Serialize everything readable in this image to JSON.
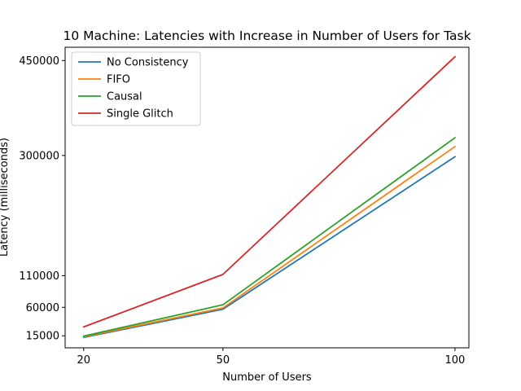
{
  "chart_data": {
    "type": "line",
    "title": "10 Machine: Latencies with Increase in Number of Users for Task",
    "xlabel": "Number of Users",
    "ylabel": "Latency (milliseconds)",
    "x": [
      20,
      50,
      100
    ],
    "x_ticks": [
      "20",
      "50",
      "100"
    ],
    "y_ticks": [
      "15000",
      "60000",
      "110000",
      "300000",
      "450000"
    ],
    "y_tick_values": [
      15000,
      60000,
      110000,
      300000,
      450000
    ],
    "xlim": [
      16,
      103
    ],
    "ylim": [
      -4000,
      471000
    ],
    "grid": false,
    "legend_position": "top-left",
    "series": [
      {
        "name": "No Consistency",
        "color": "#1f77b4",
        "values": [
          12500,
          57000,
          298000
        ]
      },
      {
        "name": "FIFO",
        "color": "#ff7f0e",
        "values": [
          13500,
          59000,
          314000
        ]
      },
      {
        "name": "Causal",
        "color": "#2ca02c",
        "values": [
          14500,
          64000,
          328000
        ]
      },
      {
        "name": "Single Glitch",
        "color": "#d62728",
        "values": [
          29000,
          112000,
          456000
        ]
      }
    ]
  }
}
